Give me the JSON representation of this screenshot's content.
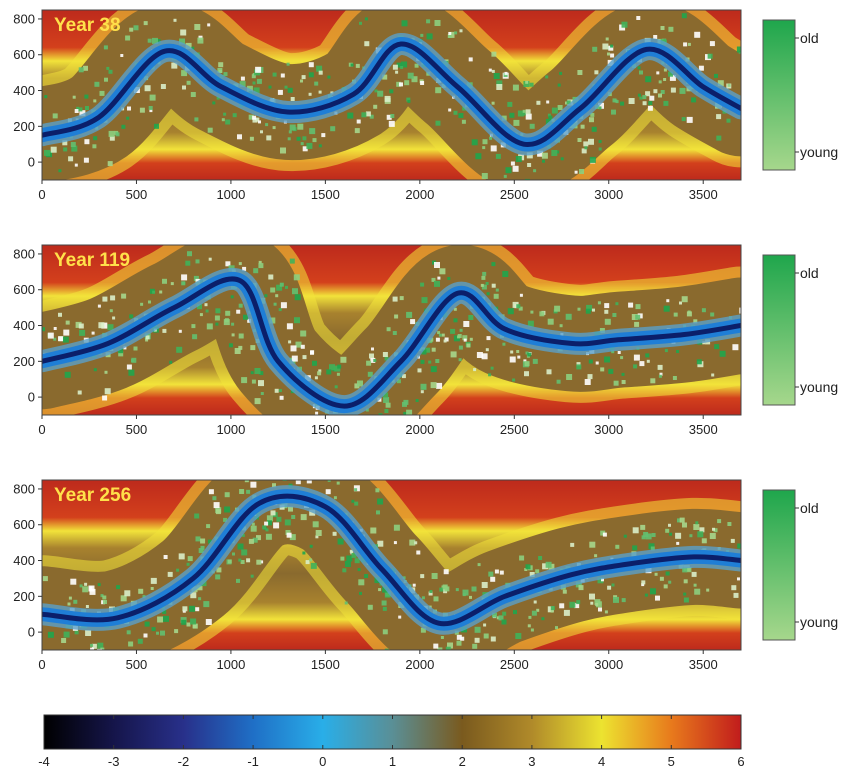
{
  "chart_data": [
    {
      "type": "heatmap",
      "panel_label": "Year 38",
      "xlim": [
        0,
        3700
      ],
      "ylim": [
        -100,
        850
      ],
      "x_ticks": [
        0,
        500,
        1000,
        1500,
        2000,
        2500,
        3000,
        3500
      ],
      "y_ticks": [
        0,
        200,
        400,
        600,
        800
      ],
      "channel_centerline": {
        "x": [
          0,
          300,
          650,
          950,
          1300,
          1650,
          1900,
          2200,
          2550,
          2850,
          3200,
          3500,
          3700
        ],
        "y": [
          150,
          250,
          620,
          420,
          280,
          380,
          660,
          420,
          100,
          300,
          630,
          420,
          300
        ]
      },
      "vegetation_legend": {
        "top": "old",
        "bottom": "young"
      }
    },
    {
      "type": "heatmap",
      "panel_label": "Year 119",
      "xlim": [
        0,
        3700
      ],
      "ylim": [
        -100,
        850
      ],
      "x_ticks": [
        0,
        500,
        1000,
        1500,
        2000,
        2500,
        3000,
        3500
      ],
      "y_ticks": [
        0,
        200,
        400,
        600,
        800
      ],
      "channel_centerline": {
        "x": [
          0,
          350,
          700,
          1050,
          1250,
          1600,
          1900,
          2200,
          2450,
          2800,
          3050,
          3400,
          3700
        ],
        "y": [
          200,
          300,
          500,
          650,
          200,
          -50,
          200,
          580,
          380,
          300,
          320,
          350,
          400
        ]
      },
      "vegetation_legend": {
        "top": "old",
        "bottom": "young"
      }
    },
    {
      "type": "heatmap",
      "panel_label": "Year 256",
      "xlim": [
        0,
        3700
      ],
      "ylim": [
        -100,
        850
      ],
      "x_ticks": [
        0,
        500,
        1000,
        1500,
        2000,
        2500,
        3000,
        3500
      ],
      "y_ticks": [
        0,
        200,
        400,
        600,
        800
      ],
      "channel_centerline": {
        "x": [
          0,
          400,
          800,
          1150,
          1500,
          1800,
          2100,
          2450,
          2800,
          3100,
          3450,
          3700
        ],
        "y": [
          100,
          80,
          300,
          720,
          700,
          350,
          50,
          200,
          320,
          380,
          420,
          400
        ]
      },
      "vegetation_legend": {
        "top": "old",
        "bottom": "young"
      }
    }
  ],
  "colorbar": {
    "range": [
      -4,
      6
    ],
    "ticks": [
      -4,
      -3,
      -2,
      -1,
      0,
      1,
      2,
      3,
      4,
      5,
      6
    ],
    "stops": [
      {
        "v": -4,
        "c": "#000000"
      },
      {
        "v": -3,
        "c": "#15154a"
      },
      {
        "v": -2,
        "c": "#28308a"
      },
      {
        "v": -1,
        "c": "#1f6fc6"
      },
      {
        "v": 0,
        "c": "#29aee8"
      },
      {
        "v": 1,
        "c": "#5a8f96"
      },
      {
        "v": 2,
        "c": "#7a5a1e"
      },
      {
        "v": 3,
        "c": "#b08a2a"
      },
      {
        "v": 4,
        "c": "#ece330"
      },
      {
        "v": 5,
        "c": "#e87a1c"
      },
      {
        "v": 6,
        "c": "#c11c1c"
      }
    ]
  },
  "colors": {
    "high_ground": "#bd2a1c",
    "bank": "#f2e33a",
    "floodplain": "#8a6a2e",
    "channel": "#1f7ed6",
    "channel_deep": "#0b1f6a",
    "veg_old": "#1fa64c",
    "veg_young": "#a6d78c"
  }
}
